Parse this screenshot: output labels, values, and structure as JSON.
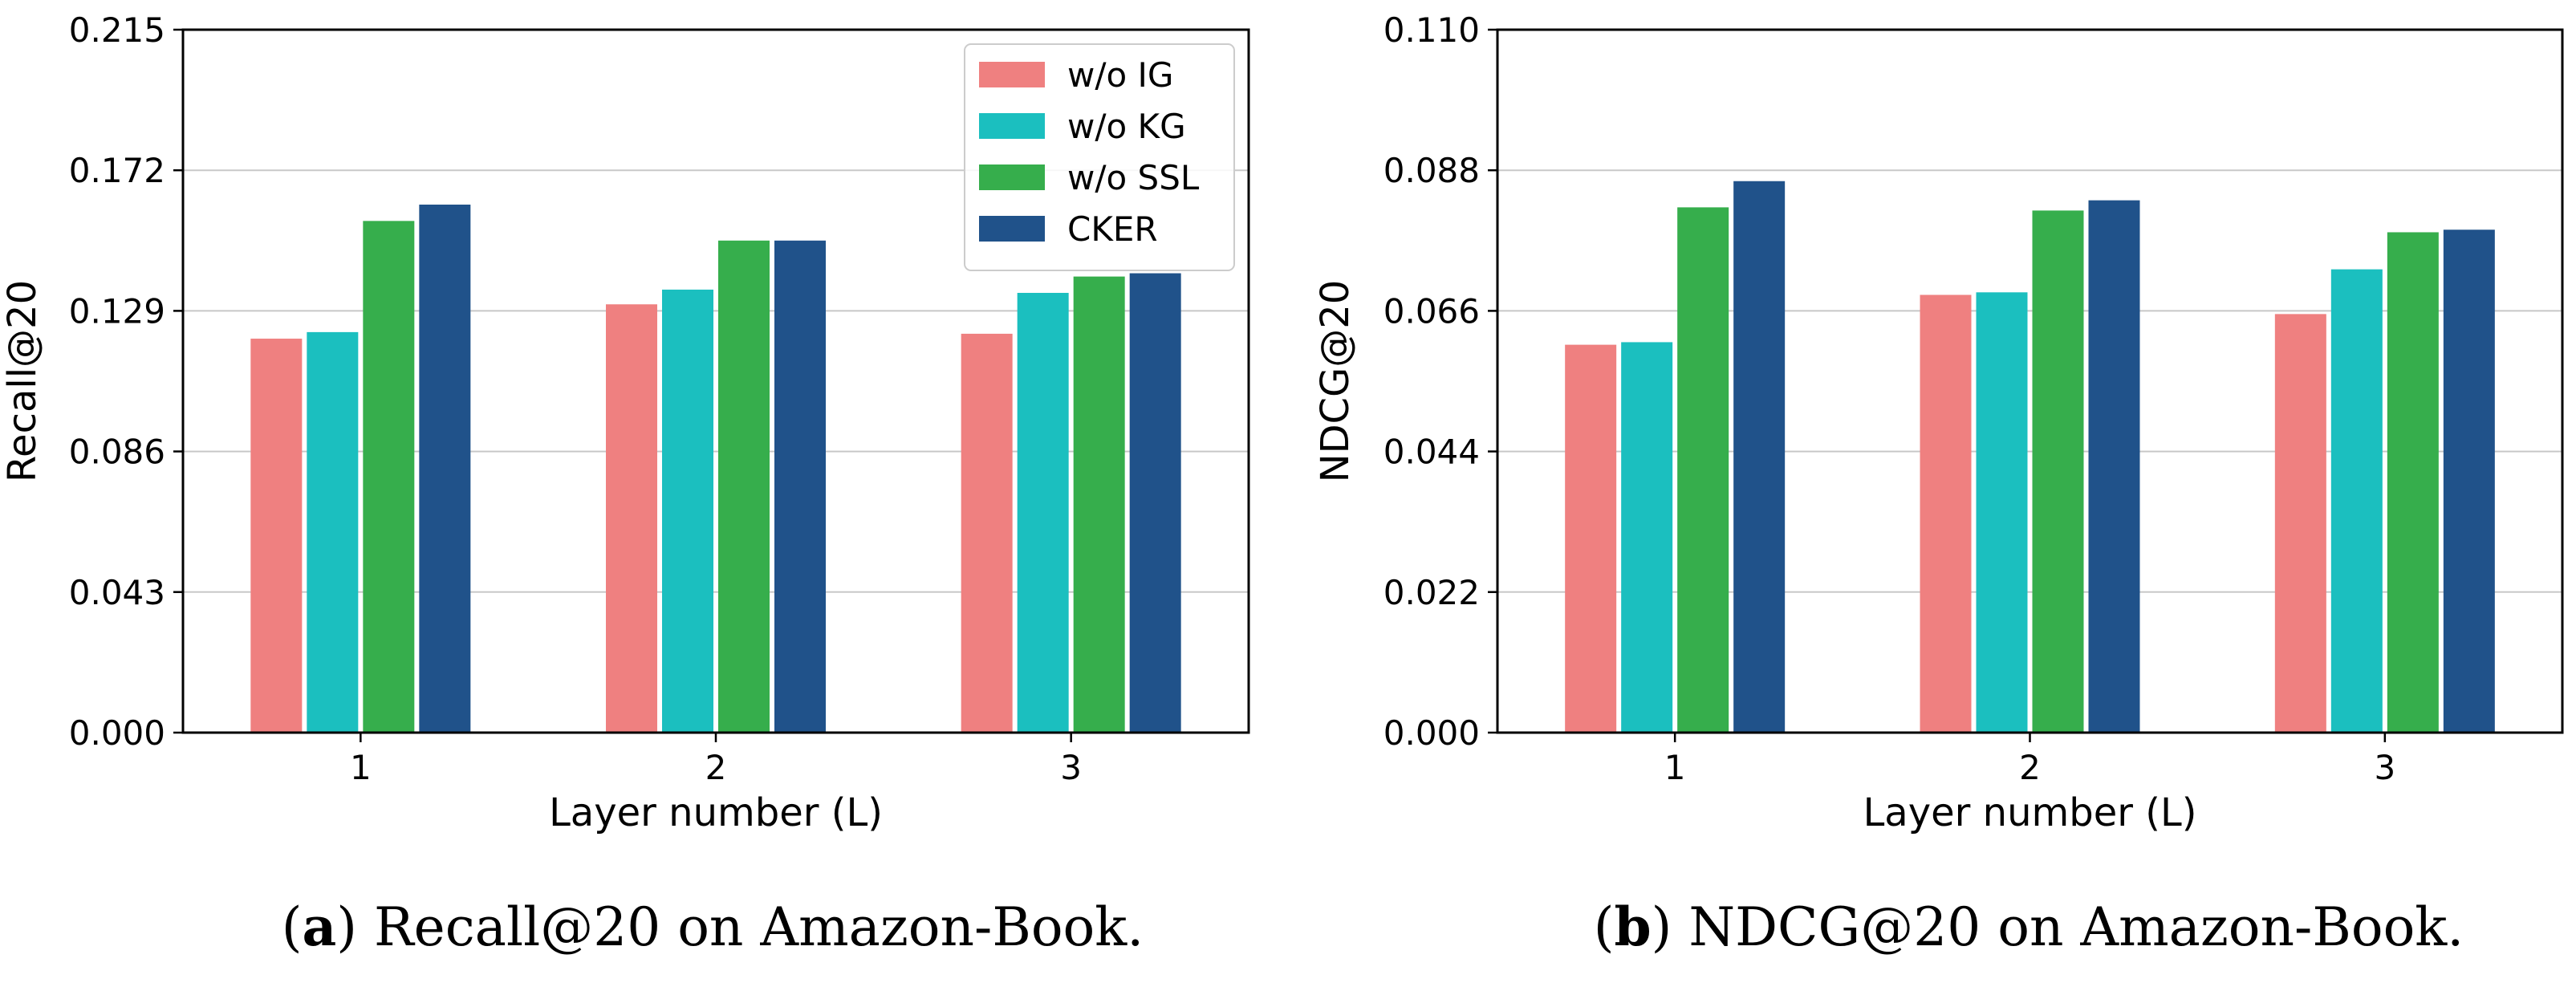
{
  "chart_data": [
    {
      "type": "bar",
      "caption_letter": "a",
      "caption_text": " Recall@20 on Amazon-Book.",
      "xlabel": "Layer number (L)",
      "ylabel": "Recall@20",
      "categories": [
        "1",
        "2",
        "3"
      ],
      "ylim": [
        0.0,
        0.215
      ],
      "yticks": [
        "0.000",
        "0.043",
        "0.086",
        "0.129",
        "0.172",
        "0.215"
      ],
      "grid": "horizontal",
      "legend_position": "top-right",
      "series": [
        {
          "name": "w/o IG",
          "color": "#EF8080",
          "values": [
            0.1205,
            0.131,
            0.122
          ]
        },
        {
          "name": "w/o KG",
          "color": "#1BBFBF",
          "values": [
            0.1225,
            0.1355,
            0.1345
          ]
        },
        {
          "name": "w/o SSL",
          "color": "#36AE4C",
          "values": [
            0.1565,
            0.1505,
            0.1395
          ]
        },
        {
          "name": "CKER",
          "color": "#20528A",
          "values": [
            0.1615,
            0.1505,
            0.1405
          ]
        }
      ]
    },
    {
      "type": "bar",
      "caption_letter": "b",
      "caption_text": " NDCG@20 on Amazon-Book.",
      "xlabel": "Layer number (L)",
      "ylabel": "NDCG@20",
      "categories": [
        "1",
        "2",
        "3"
      ],
      "ylim": [
        0.0,
        0.11
      ],
      "yticks": [
        "0.000",
        "0.022",
        "0.044",
        "0.066",
        "0.088",
        "0.110"
      ],
      "grid": "horizontal",
      "legend_position": "none",
      "series": [
        {
          "name": "w/o IG",
          "color": "#EF8080",
          "values": [
            0.0607,
            0.0685,
            0.0655
          ]
        },
        {
          "name": "w/o KG",
          "color": "#1BBFBF",
          "values": [
            0.0611,
            0.0689,
            0.0725
          ]
        },
        {
          "name": "w/o SSL",
          "color": "#36AE4C",
          "values": [
            0.0822,
            0.0817,
            0.0783
          ]
        },
        {
          "name": "CKER",
          "color": "#20528A",
          "values": [
            0.0863,
            0.0833,
            0.0787
          ]
        }
      ]
    }
  ]
}
